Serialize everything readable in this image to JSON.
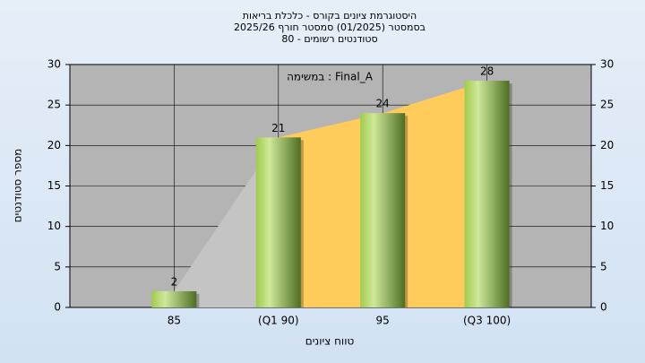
{
  "chart_data": {
    "type": "bar",
    "title": [
      "היסטוגרמת ציונים בקורס - כלכלת בריאות",
      "בסמסטר  (01/2025)  סמסטר חורף 2025/26",
      "סטודנטים רשומים - 80"
    ],
    "annotation": "במשימה : Final_A",
    "xlabel": "טווח ציונים",
    "ylabel": "מספר סטודנטים",
    "categories": [
      "85",
      "(Q1 90)",
      "95",
      "(Q3 100)"
    ],
    "values": [
      2,
      21,
      24,
      28
    ],
    "color": "#8fbf3f",
    "area_colors": [
      "#c4c4c4",
      "#ffcc5c"
    ],
    "ylim": [
      0,
      30
    ],
    "yticks": [
      0,
      5,
      10,
      15,
      20,
      25,
      30
    ],
    "y2lim": [
      0,
      30
    ],
    "y2ticks": [
      0,
      5,
      10,
      15,
      20,
      25,
      30
    ],
    "grid": true
  }
}
